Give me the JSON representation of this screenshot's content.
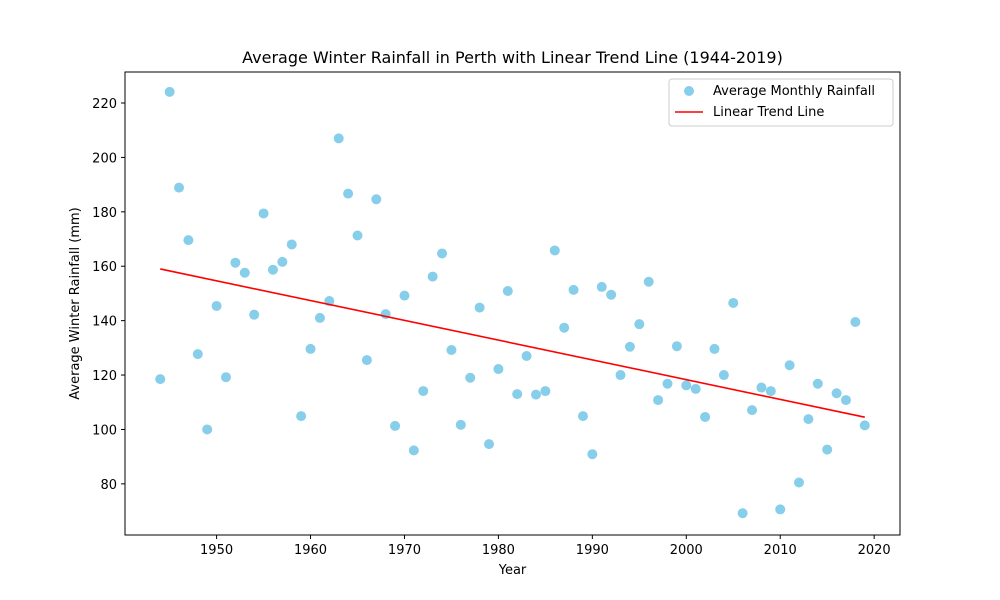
{
  "chart_data": {
    "type": "scatter",
    "title": "Average Winter Rainfall in Perth with Linear Trend Line (1944-2019)",
    "xlabel": "Year",
    "ylabel": "Average Winter Rainfall (mm)",
    "xlim": [
      1940.25,
      2022.75
    ],
    "ylim": [
      61.2,
      231.4
    ],
    "xticks": [
      1950,
      1960,
      1970,
      1980,
      1990,
      2000,
      2010,
      2020
    ],
    "yticks": [
      80,
      100,
      120,
      140,
      160,
      180,
      200,
      220
    ],
    "grid": false,
    "legend_position": "top-right",
    "series": [
      {
        "name": "Average Monthly Rainfall",
        "kind": "scatter",
        "color": "#87ceeb",
        "points": [
          [
            1944,
            118.5
          ],
          [
            1945,
            224.1
          ],
          [
            1946,
            188.9
          ],
          [
            1947,
            169.6
          ],
          [
            1948,
            127.7
          ],
          [
            1949,
            100.0
          ],
          [
            1950,
            145.4
          ],
          [
            1951,
            119.2
          ],
          [
            1952,
            161.3
          ],
          [
            1953,
            157.6
          ],
          [
            1954,
            142.2
          ],
          [
            1955,
            179.4
          ],
          [
            1956,
            158.7
          ],
          [
            1957,
            161.6
          ],
          [
            1958,
            168.0
          ],
          [
            1959,
            104.9
          ],
          [
            1960,
            129.6
          ],
          [
            1961,
            141.0
          ],
          [
            1962,
            147.2
          ],
          [
            1963,
            207.0
          ],
          [
            1964,
            186.7
          ],
          [
            1965,
            171.3
          ],
          [
            1966,
            125.5
          ],
          [
            1967,
            184.6
          ],
          [
            1968,
            142.4
          ],
          [
            1969,
            101.3
          ],
          [
            1970,
            149.2
          ],
          [
            1971,
            92.3
          ],
          [
            1972,
            114.1
          ],
          [
            1973,
            156.2
          ],
          [
            1974,
            164.7
          ],
          [
            1975,
            129.2
          ],
          [
            1976,
            101.7
          ],
          [
            1977,
            119.0
          ],
          [
            1978,
            144.8
          ],
          [
            1979,
            94.6
          ],
          [
            1980,
            122.2
          ],
          [
            1981,
            150.9
          ],
          [
            1982,
            113.0
          ],
          [
            1983,
            127.0
          ],
          [
            1984,
            112.8
          ],
          [
            1985,
            114.1
          ],
          [
            1986,
            165.8
          ],
          [
            1987,
            137.4
          ],
          [
            1988,
            151.3
          ],
          [
            1989,
            104.9
          ],
          [
            1990,
            90.9
          ],
          [
            1991,
            152.4
          ],
          [
            1992,
            149.5
          ],
          [
            1993,
            120.0
          ],
          [
            1994,
            130.4
          ],
          [
            1995,
            138.7
          ],
          [
            1996,
            154.3
          ],
          [
            1997,
            110.8
          ],
          [
            1998,
            116.8
          ],
          [
            1999,
            130.6
          ],
          [
            2000,
            116.2
          ],
          [
            2001,
            114.9
          ],
          [
            2002,
            104.6
          ],
          [
            2003,
            129.6
          ],
          [
            2004,
            120.0
          ],
          [
            2005,
            146.5
          ],
          [
            2006,
            69.2
          ],
          [
            2007,
            107.1
          ],
          [
            2008,
            115.4
          ],
          [
            2009,
            114.1
          ],
          [
            2010,
            70.6
          ],
          [
            2011,
            123.6
          ],
          [
            2012,
            80.5
          ],
          [
            2013,
            103.8
          ],
          [
            2014,
            116.8
          ],
          [
            2015,
            92.6
          ],
          [
            2016,
            113.3
          ],
          [
            2017,
            110.8
          ],
          [
            2018,
            139.5
          ],
          [
            2019,
            101.5
          ]
        ]
      },
      {
        "name": "Linear Trend Line",
        "kind": "line",
        "color": "#ff0000",
        "points": [
          [
            1944,
            159.0
          ],
          [
            2019,
            104.5
          ]
        ]
      }
    ]
  }
}
